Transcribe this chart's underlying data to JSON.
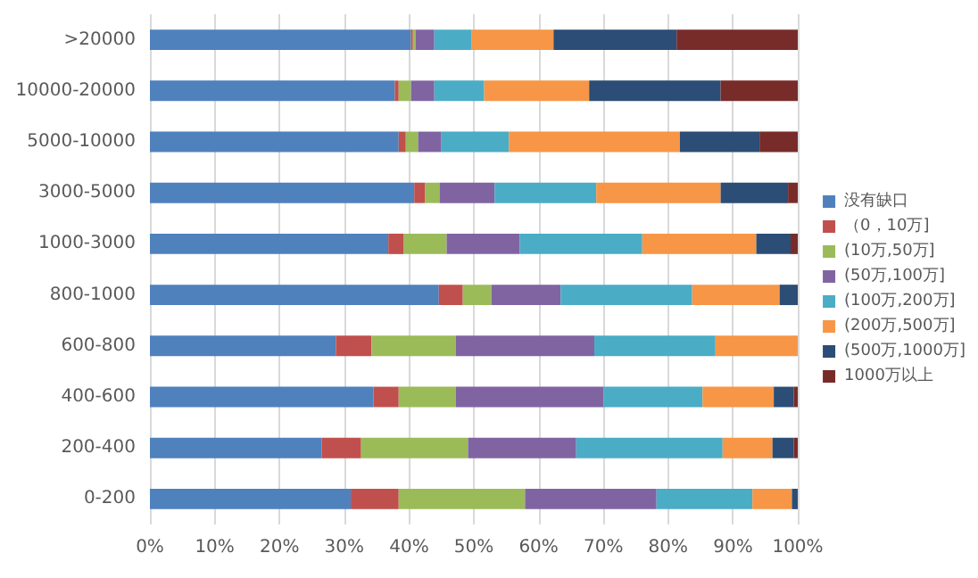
{
  "chart_data": {
    "type": "bar",
    "orientation": "horizontal",
    "stacked": true,
    "legend": "right",
    "grid": "x",
    "categories": [
      ">20000",
      "10000-20000",
      "5000-10000",
      "3000-5000",
      "1000-3000",
      "800-1000",
      "600-800",
      "400-600",
      "200-400",
      "0-200"
    ],
    "xlim": [
      0,
      100
    ],
    "xticks": [
      {
        "value": 0,
        "label": "0%"
      },
      {
        "value": 10,
        "label": "10%"
      },
      {
        "value": 20,
        "label": "20%"
      },
      {
        "value": 30,
        "label": "30%"
      },
      {
        "value": 40,
        "label": "40%"
      },
      {
        "value": 50,
        "label": "50%"
      },
      {
        "value": 60,
        "label": "60%"
      },
      {
        "value": 70,
        "label": "70%"
      },
      {
        "value": 80,
        "label": "80%"
      },
      {
        "value": 90,
        "label": "90%"
      },
      {
        "value": 100,
        "label": "100%"
      }
    ],
    "series": [
      {
        "name": "没有缺口",
        "color": "#4f81bd",
        "values": [
          40.3,
          37.8,
          38.4,
          40.8,
          36.8,
          44.6,
          28.7,
          34.5,
          26.5,
          31.0
        ]
      },
      {
        "name": "（0，10万]",
        "color": "#c0504d",
        "values": [
          0.3,
          0.6,
          1.1,
          1.7,
          2.4,
          3.7,
          5.5,
          3.9,
          6.1,
          7.4
        ]
      },
      {
        "name": "(10万,50万]",
        "color": "#9bbb59",
        "values": [
          0.4,
          1.9,
          1.9,
          2.2,
          6.6,
          4.4,
          13.0,
          8.8,
          16.5,
          19.5
        ]
      },
      {
        "name": "(50万,100万]",
        "color": "#8064a2",
        "values": [
          2.9,
          3.6,
          3.6,
          8.5,
          11.3,
          10.7,
          21.4,
          22.8,
          16.7,
          20.3
        ]
      },
      {
        "name": "(100万,200万]",
        "color": "#4bacc6",
        "values": [
          5.7,
          7.7,
          10.4,
          15.7,
          18.9,
          20.3,
          18.7,
          15.3,
          22.6,
          14.8
        ]
      },
      {
        "name": "(200万,500万]",
        "color": "#f79646",
        "values": [
          12.7,
          16.2,
          26.4,
          19.2,
          17.6,
          13.5,
          12.7,
          11.0,
          7.7,
          6.1
        ]
      },
      {
        "name": "(500万,1000万]",
        "color": "#2c4d75",
        "values": [
          19.0,
          20.3,
          12.3,
          10.4,
          5.3,
          2.8,
          0,
          3.1,
          3.3,
          0.9
        ]
      },
      {
        "name": "1000万以上",
        "color": "#772c2a",
        "values": [
          18.7,
          11.9,
          5.9,
          1.5,
          1.1,
          0,
          0,
          0.6,
          0.6,
          0
        ]
      }
    ]
  }
}
